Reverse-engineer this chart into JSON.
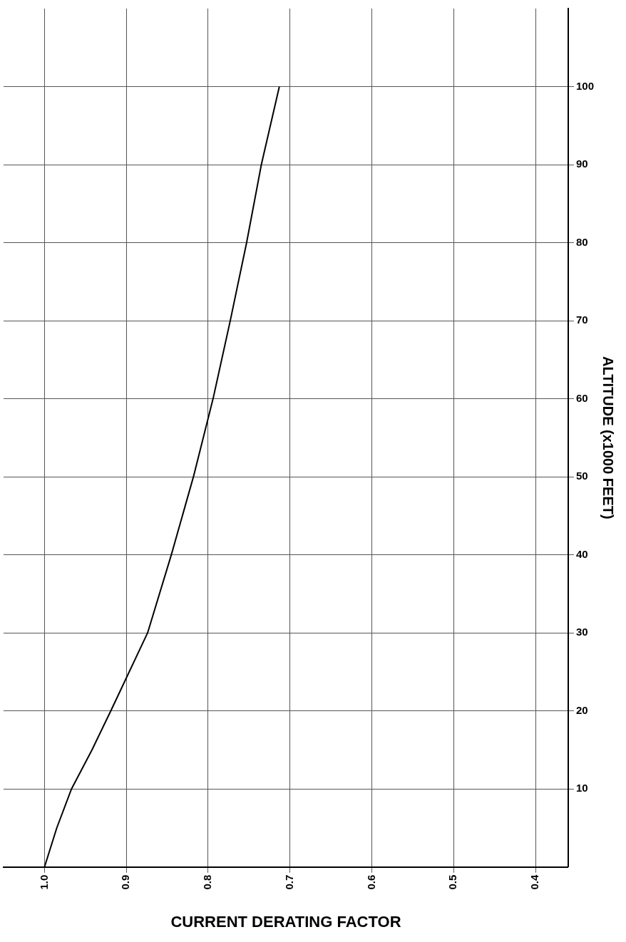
{
  "chart_data": {
    "type": "line",
    "xlabel": "CURRENT DERATING FACTOR",
    "ylabel": "ALTITUDE (x1000 FEET)",
    "xlim": [
      1.05,
      0.36
    ],
    "ylim": [
      0,
      110
    ],
    "xticks": [
      {
        "value": 1,
        "label": "1.0"
      },
      0.9,
      0.8,
      0.7,
      0.6,
      0.5,
      0.4
    ],
    "yticks": [
      10,
      20,
      30,
      40,
      50,
      60,
      70,
      80,
      90,
      100
    ],
    "grid": true,
    "legend": false,
    "series": [
      {
        "color": "#000000",
        "x": [
          1,
          0.985,
          0.967,
          0.942,
          0.919,
          0.874,
          0.845,
          0.818,
          0.794,
          0.773,
          0.753,
          0.735,
          0.713
        ],
        "values": [
          0,
          5,
          10,
          15,
          20,
          30,
          40,
          50,
          60,
          70,
          80,
          90,
          100
        ]
      }
    ]
  }
}
